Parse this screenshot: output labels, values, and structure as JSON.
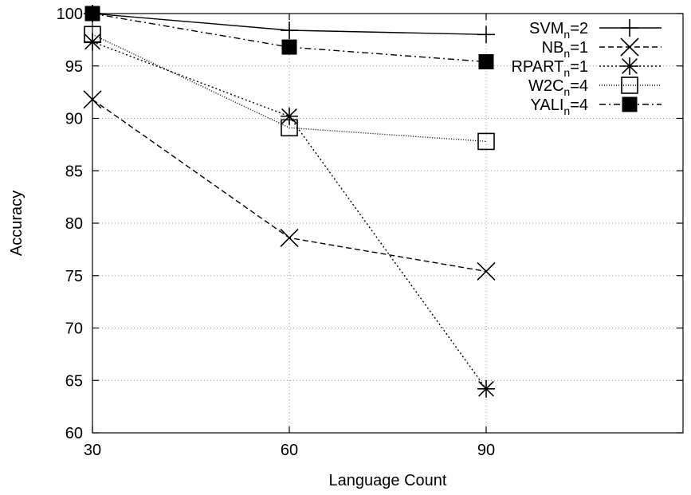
{
  "chart_data": {
    "type": "line",
    "xlabel": "Language Count",
    "ylabel": "Accuracy",
    "x": [
      30,
      60,
      90
    ],
    "xlim": [
      30,
      120
    ],
    "ylim": [
      60,
      100
    ],
    "xticks": [
      "30",
      "60",
      "90"
    ],
    "yticks": [
      "60",
      "65",
      "70",
      "75",
      "80",
      "85",
      "90",
      "95",
      "100"
    ],
    "grid": true,
    "legend_position": "top-right",
    "series": [
      {
        "name": "SVM",
        "sub": "n",
        "suffix": "=2",
        "marker": "plus",
        "dash": "solid",
        "values": [
          100,
          98.4,
          98.0
        ]
      },
      {
        "name": "NB",
        "sub": "n",
        "suffix": "=1",
        "marker": "cross",
        "dash": "dashed",
        "values": [
          91.8,
          78.6,
          75.4
        ]
      },
      {
        "name": "RPART",
        "sub": "n",
        "suffix": "=1",
        "marker": "star",
        "dash": "dotted",
        "values": [
          97.3,
          90.2,
          64.2
        ]
      },
      {
        "name": "W2C",
        "sub": "n",
        "suffix": "=4",
        "marker": "open-square",
        "dash": "fine-dotted",
        "values": [
          98.0,
          89.1,
          87.8
        ]
      },
      {
        "name": "YALI",
        "sub": "n",
        "suffix": "=4",
        "marker": "filled-square",
        "dash": "dash-dot",
        "values": [
          100,
          96.8,
          95.4
        ]
      }
    ]
  }
}
